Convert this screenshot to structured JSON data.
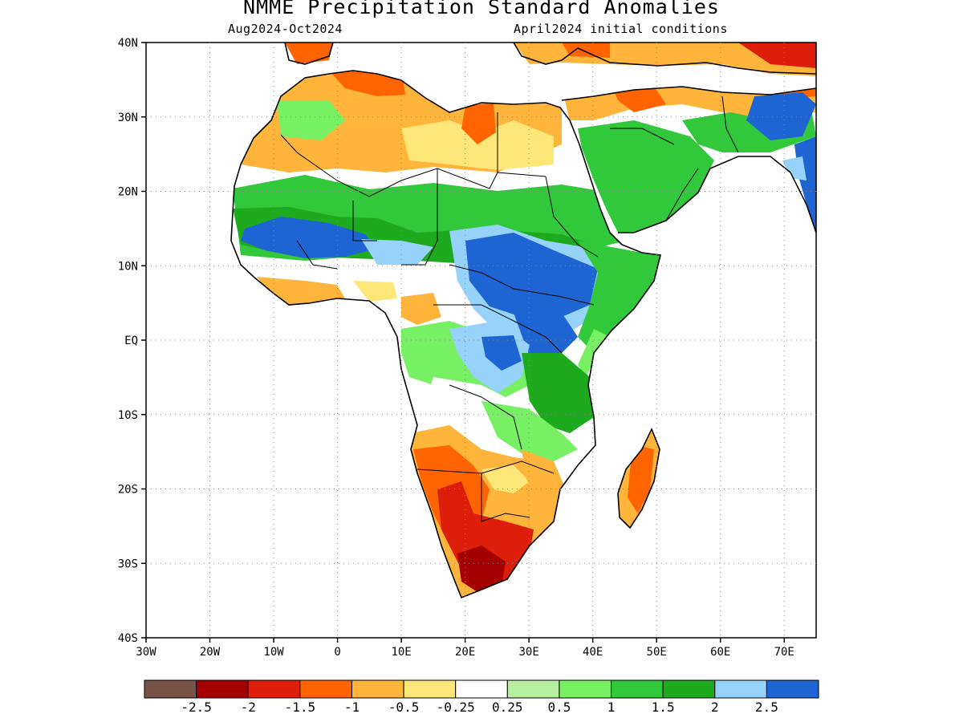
{
  "title": "NMME Precipitation Standard Anomalies",
  "subtitle_left": "Aug2024-Oct2024",
  "subtitle_right": "April2024 initial conditions",
  "lat_ticks": [
    {
      "value": 40,
      "label": "40N"
    },
    {
      "value": 30,
      "label": "30N"
    },
    {
      "value": 20,
      "label": "20N"
    },
    {
      "value": 10,
      "label": "10N"
    },
    {
      "value": 0,
      "label": "EQ"
    },
    {
      "value": -10,
      "label": "10S"
    },
    {
      "value": -20,
      "label": "20S"
    },
    {
      "value": -30,
      "label": "30S"
    },
    {
      "value": -40,
      "label": "40S"
    }
  ],
  "lon_ticks": [
    {
      "value": -30,
      "label": "30W"
    },
    {
      "value": -20,
      "label": "20W"
    },
    {
      "value": -10,
      "label": "10W"
    },
    {
      "value": 0,
      "label": "0"
    },
    {
      "value": 10,
      "label": "10E"
    },
    {
      "value": 20,
      "label": "20E"
    },
    {
      "value": 30,
      "label": "30E"
    },
    {
      "value": 40,
      "label": "40E"
    },
    {
      "value": 50,
      "label": "50E"
    },
    {
      "value": 60,
      "label": "60E"
    },
    {
      "value": 70,
      "label": "70E"
    }
  ],
  "colorbar": {
    "colors": [
      "#7a5348",
      "#a50000",
      "#dc1e0a",
      "#ff6400",
      "#ffb43c",
      "#ffe678",
      "#ffffff",
      "#b4f0a0",
      "#78f064",
      "#32c83c",
      "#1eaa1e",
      "#96d2fa",
      "#1e64d2"
    ],
    "labels": [
      "-2.5",
      "-2",
      "-1.5",
      "-1",
      "-0.5",
      "-0.25",
      "0.25",
      "0.5",
      "1",
      "1.5",
      "2",
      "2.5"
    ]
  },
  "regions": [
    {
      "name": "mediterranean-dry",
      "color": "#ffb43c",
      "anomaly": "-0.5"
    },
    {
      "name": "libya-egypt-mixed",
      "color": "#ffe678",
      "anomaly": "-0.25"
    },
    {
      "name": "sahel-wet",
      "color": "#32c83c",
      "anomaly": "1.5"
    },
    {
      "name": "west-africa-very-wet",
      "color": "#1e64d2",
      "anomaly": "2.5"
    },
    {
      "name": "sudan-ethiopia-wet",
      "color": "#1e64d2",
      "anomaly": "2.5"
    },
    {
      "name": "arabia-wet",
      "color": "#32c83c",
      "anomaly": "1.5"
    },
    {
      "name": "india-wet",
      "color": "#1e64d2",
      "anomaly": "2.5"
    },
    {
      "name": "southern-africa-dry",
      "color": "#dc1e0a",
      "anomaly": "-1.5"
    },
    {
      "name": "madagascar-dry",
      "color": "#ff6400",
      "anomaly": "-1"
    }
  ]
}
